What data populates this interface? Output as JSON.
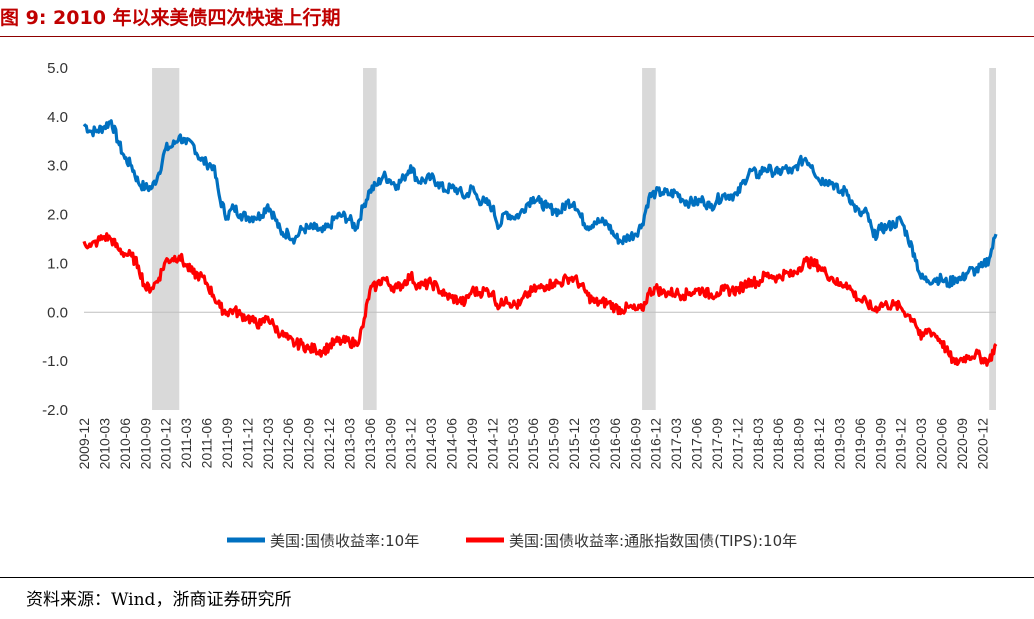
{
  "figure": {
    "title": "图 9: 2010 年以来美债四次快速上行期",
    "source": "资料来源：Wind，浙商证券研究所"
  },
  "chart_data": {
    "type": "line",
    "title": "图 9: 2010 年以来美债四次快速上行期",
    "xlabel": "",
    "ylabel": "",
    "ylim": [
      -2.0,
      5.0
    ],
    "yticks": [
      -2.0,
      -1.0,
      0.0,
      1.0,
      2.0,
      3.0,
      4.0,
      5.0
    ],
    "ytick_labels": [
      "-2.0",
      "-1.0",
      "0.0",
      "1.0",
      "2.0",
      "3.0",
      "4.0",
      "5.0"
    ],
    "xlim": [
      "2009-12",
      "2021-02"
    ],
    "xticks": [
      "2009-12",
      "2010-03",
      "2010-06",
      "2010-09",
      "2010-12",
      "2011-03",
      "2011-06",
      "2011-09",
      "2011-12",
      "2012-03",
      "2012-06",
      "2012-09",
      "2012-12",
      "2013-03",
      "2013-06",
      "2013-09",
      "2013-12",
      "2014-03",
      "2014-06",
      "2014-09",
      "2014-12",
      "2015-03",
      "2015-06",
      "2015-09",
      "2015-12",
      "2016-03",
      "2016-06",
      "2016-09",
      "2016-12",
      "2017-03",
      "2017-06",
      "2017-09",
      "2017-12",
      "2018-03",
      "2018-06",
      "2018-09",
      "2018-12",
      "2019-03",
      "2019-06",
      "2019-09",
      "2019-12",
      "2020-03",
      "2020-06",
      "2020-09",
      "2020-12"
    ],
    "grid": false,
    "legend_position": "bottom",
    "shaded_periods": [
      {
        "start": "2010-10",
        "end": "2011-02"
      },
      {
        "start": "2013-05",
        "end": "2013-07"
      },
      {
        "start": "2016-10",
        "end": "2016-12"
      },
      {
        "start": "2021-01",
        "end": "2021-02"
      }
    ],
    "series": [
      {
        "name": "美国:国债收益率:10年",
        "color": "#0070c0",
        "points": [
          [
            "2009-12",
            3.85
          ],
          [
            "2010-01",
            3.7
          ],
          [
            "2010-02",
            3.72
          ],
          [
            "2010-03",
            3.8
          ],
          [
            "2010-04",
            3.92
          ],
          [
            "2010-05",
            3.5
          ],
          [
            "2010-06",
            3.15
          ],
          [
            "2010-07",
            3.0
          ],
          [
            "2010-08",
            2.65
          ],
          [
            "2010-09",
            2.55
          ],
          [
            "2010-10",
            2.55
          ],
          [
            "2010-11",
            2.85
          ],
          [
            "2010-12",
            3.35
          ],
          [
            "2011-01",
            3.4
          ],
          [
            "2011-02",
            3.6
          ],
          [
            "2011-03",
            3.45
          ],
          [
            "2011-04",
            3.45
          ],
          [
            "2011-05",
            3.15
          ],
          [
            "2011-06",
            3.05
          ],
          [
            "2011-07",
            3.0
          ],
          [
            "2011-08",
            2.3
          ],
          [
            "2011-09",
            1.95
          ],
          [
            "2011-10",
            2.15
          ],
          [
            "2011-11",
            2.0
          ],
          [
            "2011-12",
            1.95
          ],
          [
            "2012-01",
            1.95
          ],
          [
            "2012-02",
            1.98
          ],
          [
            "2012-03",
            2.2
          ],
          [
            "2012-04",
            1.95
          ],
          [
            "2012-05",
            1.6
          ],
          [
            "2012-06",
            1.62
          ],
          [
            "2012-07",
            1.5
          ],
          [
            "2012-08",
            1.7
          ],
          [
            "2012-09",
            1.72
          ],
          [
            "2012-10",
            1.72
          ],
          [
            "2012-11",
            1.65
          ],
          [
            "2012-12",
            1.75
          ],
          [
            "2013-01",
            1.95
          ],
          [
            "2013-02",
            1.98
          ],
          [
            "2013-03",
            1.9
          ],
          [
            "2013-04",
            1.72
          ],
          [
            "2013-05",
            2.15
          ],
          [
            "2013-06",
            2.5
          ],
          [
            "2013-07",
            2.6
          ],
          [
            "2013-08",
            2.8
          ],
          [
            "2013-09",
            2.7
          ],
          [
            "2013-10",
            2.6
          ],
          [
            "2013-11",
            2.75
          ],
          [
            "2013-12",
            3.0
          ],
          [
            "2014-01",
            2.7
          ],
          [
            "2014-02",
            2.7
          ],
          [
            "2014-03",
            2.75
          ],
          [
            "2014-04",
            2.65
          ],
          [
            "2014-05",
            2.5
          ],
          [
            "2014-06",
            2.55
          ],
          [
            "2014-07",
            2.5
          ],
          [
            "2014-08",
            2.35
          ],
          [
            "2014-09",
            2.55
          ],
          [
            "2014-10",
            2.3
          ],
          [
            "2014-11",
            2.25
          ],
          [
            "2014-12",
            2.15
          ],
          [
            "2015-01",
            1.75
          ],
          [
            "2015-02",
            2.05
          ],
          [
            "2015-03",
            1.95
          ],
          [
            "2015-04",
            2.0
          ],
          [
            "2015-05",
            2.2
          ],
          [
            "2015-06",
            2.35
          ],
          [
            "2015-07",
            2.25
          ],
          [
            "2015-08",
            2.15
          ],
          [
            "2015-09",
            2.1
          ],
          [
            "2015-10",
            2.05
          ],
          [
            "2015-11",
            2.25
          ],
          [
            "2015-12",
            2.25
          ],
          [
            "2016-01",
            1.95
          ],
          [
            "2016-02",
            1.75
          ],
          [
            "2016-03",
            1.85
          ],
          [
            "2016-04",
            1.85
          ],
          [
            "2016-05",
            1.8
          ],
          [
            "2016-06",
            1.55
          ],
          [
            "2016-07",
            1.45
          ],
          [
            "2016-08",
            1.55
          ],
          [
            "2016-09",
            1.6
          ],
          [
            "2016-10",
            1.8
          ],
          [
            "2016-11",
            2.35
          ],
          [
            "2016-12",
            2.45
          ],
          [
            "2017-01",
            2.45
          ],
          [
            "2017-02",
            2.42
          ],
          [
            "2017-03",
            2.45
          ],
          [
            "2017-04",
            2.3
          ],
          [
            "2017-05",
            2.25
          ],
          [
            "2017-06",
            2.25
          ],
          [
            "2017-07",
            2.3
          ],
          [
            "2017-08",
            2.15
          ],
          [
            "2017-09",
            2.3
          ],
          [
            "2017-10",
            2.4
          ],
          [
            "2017-11",
            2.4
          ],
          [
            "2017-12",
            2.4
          ],
          [
            "2018-01",
            2.7
          ],
          [
            "2018-02",
            2.9
          ],
          [
            "2018-03",
            2.8
          ],
          [
            "2018-04",
            2.95
          ],
          [
            "2018-05",
            2.9
          ],
          [
            "2018-06",
            2.85
          ],
          [
            "2018-07",
            2.95
          ],
          [
            "2018-08",
            2.85
          ],
          [
            "2018-09",
            3.05
          ],
          [
            "2018-10",
            3.15
          ],
          [
            "2018-11",
            3.0
          ],
          [
            "2018-12",
            2.7
          ],
          [
            "2019-01",
            2.7
          ],
          [
            "2019-02",
            2.65
          ],
          [
            "2019-03",
            2.45
          ],
          [
            "2019-04",
            2.5
          ],
          [
            "2019-05",
            2.2
          ],
          [
            "2019-06",
            2.0
          ],
          [
            "2019-07",
            2.05
          ],
          [
            "2019-08",
            1.55
          ],
          [
            "2019-09",
            1.7
          ],
          [
            "2019-10",
            1.75
          ],
          [
            "2019-11",
            1.8
          ],
          [
            "2019-12",
            1.9
          ],
          [
            "2020-01",
            1.55
          ],
          [
            "2020-02",
            1.2
          ],
          [
            "2020-03",
            0.7
          ],
          [
            "2020-04",
            0.65
          ],
          [
            "2020-05",
            0.68
          ],
          [
            "2020-06",
            0.68
          ],
          [
            "2020-07",
            0.58
          ],
          [
            "2020-08",
            0.7
          ],
          [
            "2020-09",
            0.68
          ],
          [
            "2020-10",
            0.85
          ],
          [
            "2020-11",
            0.85
          ],
          [
            "2020-12",
            0.93
          ],
          [
            "2021-01",
            1.1
          ],
          [
            "2021-02",
            1.6
          ]
        ]
      },
      {
        "name": "美国:国债收益率:通胀指数国债(TIPS):10年",
        "color": "#ff0000",
        "points": [
          [
            "2009-12",
            1.45
          ],
          [
            "2010-01",
            1.35
          ],
          [
            "2010-02",
            1.45
          ],
          [
            "2010-03",
            1.55
          ],
          [
            "2010-04",
            1.5
          ],
          [
            "2010-05",
            1.3
          ],
          [
            "2010-06",
            1.2
          ],
          [
            "2010-07",
            1.15
          ],
          [
            "2010-08",
            0.95
          ],
          [
            "2010-09",
            0.5
          ],
          [
            "2010-10",
            0.5
          ],
          [
            "2010-11",
            0.7
          ],
          [
            "2010-12",
            1.05
          ],
          [
            "2011-01",
            1.1
          ],
          [
            "2011-02",
            1.15
          ],
          [
            "2011-03",
            0.95
          ],
          [
            "2011-04",
            0.8
          ],
          [
            "2011-05",
            0.75
          ],
          [
            "2011-06",
            0.6
          ],
          [
            "2011-07",
            0.35
          ],
          [
            "2011-08",
            0.1
          ],
          [
            "2011-09",
            0.0
          ],
          [
            "2011-10",
            0.05
          ],
          [
            "2011-11",
            -0.05
          ],
          [
            "2011-12",
            -0.1
          ],
          [
            "2012-01",
            -0.2
          ],
          [
            "2012-02",
            -0.25
          ],
          [
            "2012-03",
            -0.1
          ],
          [
            "2012-04",
            -0.3
          ],
          [
            "2012-05",
            -0.45
          ],
          [
            "2012-06",
            -0.55
          ],
          [
            "2012-07",
            -0.65
          ],
          [
            "2012-08",
            -0.65
          ],
          [
            "2012-09",
            -0.75
          ],
          [
            "2012-10",
            -0.75
          ],
          [
            "2012-11",
            -0.8
          ],
          [
            "2012-12",
            -0.7
          ],
          [
            "2013-01",
            -0.6
          ],
          [
            "2013-02",
            -0.6
          ],
          [
            "2013-03",
            -0.6
          ],
          [
            "2013-04",
            -0.65
          ],
          [
            "2013-05",
            -0.3
          ],
          [
            "2013-06",
            0.45
          ],
          [
            "2013-07",
            0.55
          ],
          [
            "2013-08",
            0.7
          ],
          [
            "2013-09",
            0.55
          ],
          [
            "2013-10",
            0.5
          ],
          [
            "2013-11",
            0.6
          ],
          [
            "2013-12",
            0.75
          ],
          [
            "2014-01",
            0.55
          ],
          [
            "2014-02",
            0.55
          ],
          [
            "2014-03",
            0.6
          ],
          [
            "2014-04",
            0.5
          ],
          [
            "2014-05",
            0.35
          ],
          [
            "2014-06",
            0.3
          ],
          [
            "2014-07",
            0.25
          ],
          [
            "2014-08",
            0.2
          ],
          [
            "2014-09",
            0.45
          ],
          [
            "2014-10",
            0.4
          ],
          [
            "2014-11",
            0.45
          ],
          [
            "2014-12",
            0.4
          ],
          [
            "2015-01",
            0.1
          ],
          [
            "2015-02",
            0.3
          ],
          [
            "2015-03",
            0.15
          ],
          [
            "2015-04",
            0.15
          ],
          [
            "2015-05",
            0.35
          ],
          [
            "2015-06",
            0.45
          ],
          [
            "2015-07",
            0.5
          ],
          [
            "2015-08",
            0.55
          ],
          [
            "2015-09",
            0.6
          ],
          [
            "2015-10",
            0.6
          ],
          [
            "2015-11",
            0.7
          ],
          [
            "2015-12",
            0.7
          ],
          [
            "2016-01",
            0.55
          ],
          [
            "2016-02",
            0.35
          ],
          [
            "2016-03",
            0.2
          ],
          [
            "2016-04",
            0.2
          ],
          [
            "2016-05",
            0.2
          ],
          [
            "2016-06",
            0.1
          ],
          [
            "2016-07",
            0.05
          ],
          [
            "2016-08",
            0.1
          ],
          [
            "2016-09",
            0.05
          ],
          [
            "2016-10",
            0.05
          ],
          [
            "2016-11",
            0.4
          ],
          [
            "2016-12",
            0.5
          ],
          [
            "2017-01",
            0.4
          ],
          [
            "2017-02",
            0.4
          ],
          [
            "2017-03",
            0.4
          ],
          [
            "2017-04",
            0.35
          ],
          [
            "2017-05",
            0.4
          ],
          [
            "2017-06",
            0.45
          ],
          [
            "2017-07",
            0.45
          ],
          [
            "2017-08",
            0.35
          ],
          [
            "2017-09",
            0.4
          ],
          [
            "2017-10",
            0.45
          ],
          [
            "2017-11",
            0.45
          ],
          [
            "2017-12",
            0.45
          ],
          [
            "2018-01",
            0.55
          ],
          [
            "2018-02",
            0.65
          ],
          [
            "2018-03",
            0.6
          ],
          [
            "2018-04",
            0.75
          ],
          [
            "2018-05",
            0.75
          ],
          [
            "2018-06",
            0.7
          ],
          [
            "2018-07",
            0.8
          ],
          [
            "2018-08",
            0.75
          ],
          [
            "2018-09",
            0.9
          ],
          [
            "2018-10",
            1.05
          ],
          [
            "2018-11",
            1.0
          ],
          [
            "2018-12",
            0.95
          ],
          [
            "2019-01",
            0.8
          ],
          [
            "2019-02",
            0.7
          ],
          [
            "2019-03",
            0.55
          ],
          [
            "2019-04",
            0.6
          ],
          [
            "2019-05",
            0.4
          ],
          [
            "2019-06",
            0.25
          ],
          [
            "2019-07",
            0.2
          ],
          [
            "2019-08",
            0.05
          ],
          [
            "2019-09",
            0.15
          ],
          [
            "2019-10",
            0.15
          ],
          [
            "2019-11",
            0.15
          ],
          [
            "2019-12",
            0.1
          ],
          [
            "2020-01",
            -0.05
          ],
          [
            "2020-02",
            -0.15
          ],
          [
            "2020-03",
            -0.55
          ],
          [
            "2020-04",
            -0.35
          ],
          [
            "2020-05",
            -0.45
          ],
          [
            "2020-06",
            -0.6
          ],
          [
            "2020-07",
            -0.85
          ],
          [
            "2020-08",
            -1.05
          ],
          [
            "2020-09",
            -0.95
          ],
          [
            "2020-10",
            -0.9
          ],
          [
            "2020-11",
            -0.85
          ],
          [
            "2020-12",
            -0.95
          ],
          [
            "2021-01",
            -1.0
          ],
          [
            "2021-02",
            -0.65
          ]
        ]
      }
    ]
  }
}
